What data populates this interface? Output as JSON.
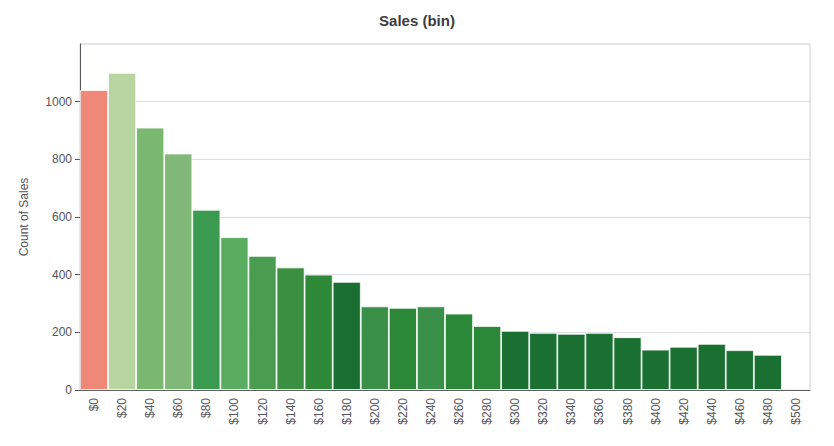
{
  "chart_data": {
    "type": "bar",
    "title": "Sales (bin)",
    "ylabel": "Count of Sales",
    "categories": [
      "$0",
      "$20",
      "$40",
      "$60",
      "$80",
      "$100",
      "$120",
      "$140",
      "$160",
      "$180",
      "$200",
      "$220",
      "$240",
      "$260",
      "$280",
      "$300",
      "$320",
      "$340",
      "$360",
      "$380",
      "$400",
      "$420",
      "$440",
      "$460",
      "$480",
      "$500"
    ],
    "values": [
      1040,
      1100,
      910,
      820,
      625,
      530,
      465,
      425,
      400,
      375,
      290,
      285,
      290,
      265,
      222,
      205,
      198,
      195,
      198,
      183,
      140,
      150,
      160,
      138,
      122,
      5
    ],
    "colors": [
      "#f08878",
      "#b8d4a0",
      "#7ab870",
      "#80b878",
      "#3a9a50",
      "#5aac60",
      "#4a9c50",
      "#3a9040",
      "#2d8838",
      "#1a7030",
      "#3a9048",
      "#2a8838",
      "#3a9048",
      "#2a8838",
      "#2a8838",
      "#1a7030",
      "#1a7030",
      "#1a7030",
      "#1a7030",
      "#1a7030",
      "#1a7030",
      "#1a7030",
      "#1a7030",
      "#1a7030",
      "#1a7030",
      "#a0c870"
    ],
    "ylim": [
      0,
      1200
    ],
    "yticks": [
      0,
      200,
      400,
      600,
      800,
      1000
    ],
    "grid": true
  }
}
